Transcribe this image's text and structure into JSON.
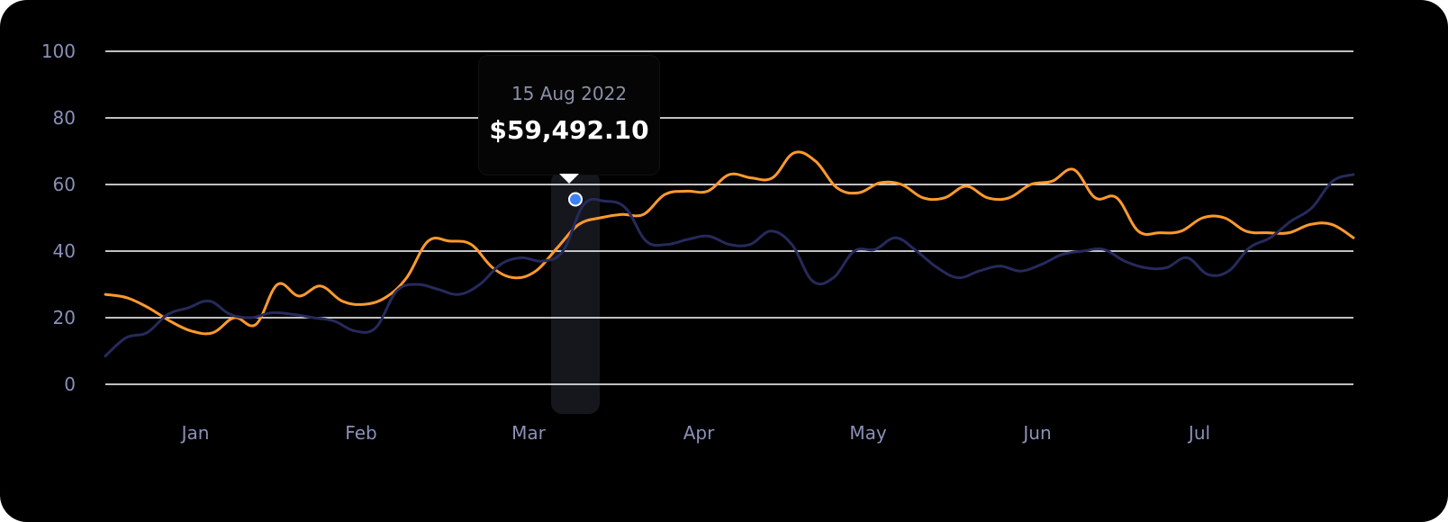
{
  "chart_data": {
    "type": "line",
    "y_ticks": [
      "0",
      "20",
      "40",
      "60",
      "80",
      "100"
    ],
    "ylim": [
      0,
      100
    ],
    "x_ticks": [
      "Jan",
      "Feb",
      "Mar",
      "Apr",
      "May",
      "Jun",
      "Jul"
    ],
    "grid": true,
    "colors": {
      "background": "#000000",
      "grid": "#ffffff",
      "tick_label": "#8b90b8",
      "series_orange": "#ff9a2e",
      "series_navy": "#262a5c",
      "highlight_band": "#15171d",
      "marker": "#3b82f6"
    },
    "series": [
      {
        "color": "#ff9a2e",
        "points": [
          [
            "Jan-start",
            27
          ],
          [
            "",
            26
          ],
          [
            "",
            23
          ],
          [
            "",
            19
          ],
          [
            "",
            16
          ],
          [
            "",
            15.5
          ],
          [
            "",
            20
          ],
          [
            "",
            18
          ],
          [
            "",
            30
          ],
          [
            "",
            26.5
          ],
          [
            "",
            29.5
          ],
          [
            "",
            25
          ],
          [
            "",
            24
          ],
          [
            "",
            26
          ],
          [
            "",
            32
          ],
          [
            "",
            43
          ],
          [
            "",
            43
          ],
          [
            "",
            42
          ],
          [
            "",
            35
          ],
          [
            "",
            32
          ],
          [
            "",
            34
          ],
          [
            "",
            41
          ],
          [
            "",
            48
          ],
          [
            "",
            50
          ],
          [
            "",
            51
          ],
          [
            "",
            51
          ],
          [
            "",
            57
          ],
          [
            "",
            58
          ],
          [
            "",
            58
          ],
          [
            "",
            63
          ],
          [
            "",
            62
          ],
          [
            "",
            62
          ],
          [
            "",
            69.5
          ],
          [
            "",
            67
          ],
          [
            "",
            59
          ],
          [
            "",
            57.5
          ],
          [
            "",
            60.5
          ],
          [
            "",
            60
          ],
          [
            "",
            56
          ],
          [
            "",
            56
          ],
          [
            "",
            59.5
          ],
          [
            "",
            56
          ],
          [
            "",
            56
          ],
          [
            "",
            60
          ],
          [
            "",
            61
          ],
          [
            "",
            64.5
          ],
          [
            "",
            56
          ],
          [
            "",
            56
          ],
          [
            "",
            46
          ],
          [
            "",
            45.5
          ],
          [
            "",
            46
          ],
          [
            "",
            50
          ],
          [
            "",
            50
          ],
          [
            "",
            46
          ],
          [
            "",
            45.5
          ],
          [
            "",
            45.5
          ],
          [
            "",
            48
          ],
          [
            "",
            48
          ],
          [
            "",
            44
          ]
        ]
      },
      {
        "color": "#262a5c",
        "points": [
          [
            "Jan-start",
            8.5
          ],
          [
            "",
            14
          ],
          [
            "",
            15.5
          ],
          [
            "",
            21
          ],
          [
            "",
            23
          ],
          [
            "",
            25
          ],
          [
            "",
            21
          ],
          [
            "",
            20
          ],
          [
            "",
            21.5
          ],
          [
            "",
            21
          ],
          [
            "",
            20
          ],
          [
            "",
            19
          ],
          [
            "",
            16
          ],
          [
            "",
            17
          ],
          [
            "",
            28
          ],
          [
            "",
            30
          ],
          [
            "",
            28.5
          ],
          [
            "",
            27
          ],
          [
            "",
            30
          ],
          [
            "",
            36
          ],
          [
            "",
            38
          ],
          [
            "",
            37
          ],
          [
            "",
            40
          ],
          [
            "",
            54
          ],
          [
            "",
            55
          ],
          [
            "",
            53
          ],
          [
            "",
            43
          ],
          [
            "",
            42
          ],
          [
            "",
            43.5
          ],
          [
            "",
            44.5
          ],
          [
            "",
            42
          ],
          [
            "",
            42
          ],
          [
            "",
            46
          ],
          [
            "",
            42
          ],
          [
            "",
            31
          ],
          [
            "",
            32
          ],
          [
            "",
            40
          ],
          [
            "",
            40.5
          ],
          [
            "",
            44
          ],
          [
            "",
            40
          ],
          [
            "",
            35
          ],
          [
            "",
            32
          ],
          [
            "",
            34
          ],
          [
            "",
            35.5
          ],
          [
            "",
            34
          ],
          [
            "",
            36
          ],
          [
            "",
            39
          ],
          [
            "",
            40
          ],
          [
            "",
            40.5
          ],
          [
            "",
            37
          ],
          [
            "",
            35
          ],
          [
            "",
            35
          ],
          [
            "",
            38
          ],
          [
            "",
            33
          ],
          [
            "",
            34
          ],
          [
            "",
            41
          ],
          [
            "",
            44
          ],
          [
            "",
            49
          ],
          [
            "",
            53
          ],
          [
            "",
            61
          ],
          [
            "",
            63
          ]
        ]
      }
    ],
    "highlight": {
      "date": "15 Aug 2022",
      "value_label": "$59,492.10",
      "y_value": 55
    }
  }
}
